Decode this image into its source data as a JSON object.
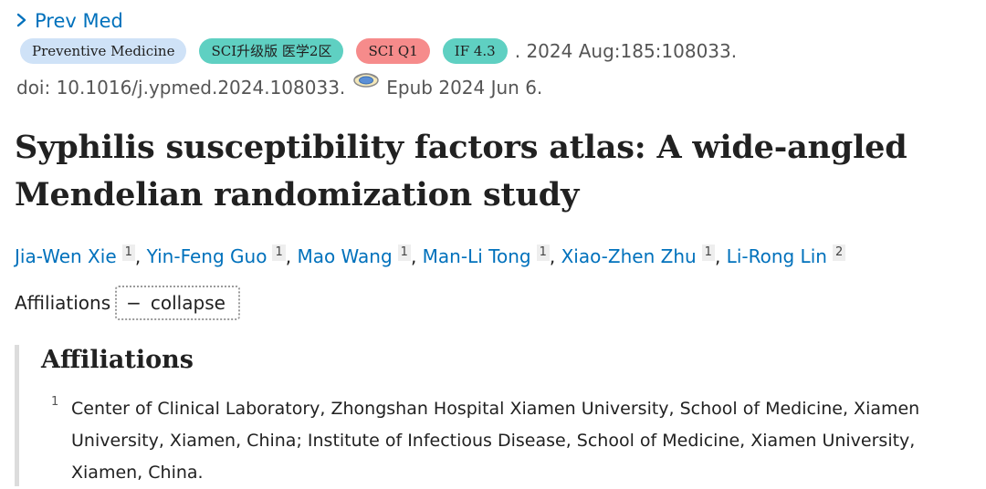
{
  "journal": {
    "chevron_icon": "chevron-right-icon",
    "link_label": "Prev Med"
  },
  "badges": {
    "journal_name": "Preventive Medicine",
    "sci_rank": "SCI升级版 医学2区",
    "sci_quartile": "SCI Q1",
    "impact_factor": "IF 4.3"
  },
  "citation": {
    "date_volume": ". 2024 Aug:185:108033.",
    "doi": "doi: 10.1016/j.ypmed.2024.108033.",
    "epub_icon": "epub-icon",
    "epub": "Epub 2024 Jun 6."
  },
  "article": {
    "title": "Syphilis susceptibility factors atlas: A wide-angled Mendelian randomization study"
  },
  "authors": [
    {
      "name": "Jia-Wen Xie",
      "aff": "1",
      "sep": ", "
    },
    {
      "name": "Yin-Feng Guo",
      "aff": "1",
      "sep": ", "
    },
    {
      "name": "Mao Wang",
      "aff": "1",
      "sep": ", "
    },
    {
      "name": "Man-Li Tong",
      "aff": "1",
      "sep": ", "
    },
    {
      "name": "Xiao-Zhen Zhu",
      "aff": "1",
      "sep": ", "
    },
    {
      "name": "Li-Rong Lin",
      "aff": "2",
      "sep": ""
    }
  ],
  "affiliations_toggle": {
    "label": "Affiliations",
    "button_symbol": "−",
    "button_label": "collapse"
  },
  "affiliations": {
    "heading": "Affiliations",
    "items": [
      {
        "number": "1",
        "text": "Center of Clinical Laboratory, Zhongshan Hospital Xiamen University, School of Medicine, Xiamen University, Xiamen, China; Institute of Infectious Disease, School of Medicine, Xiamen University, Xiamen, China."
      }
    ]
  },
  "colors": {
    "link": "#0071bc",
    "badge_journal": "#cfe2f7",
    "badge_teal": "#5fd0c2",
    "badge_red": "#f68b8b",
    "text": "#212121",
    "muted": "#555555"
  }
}
